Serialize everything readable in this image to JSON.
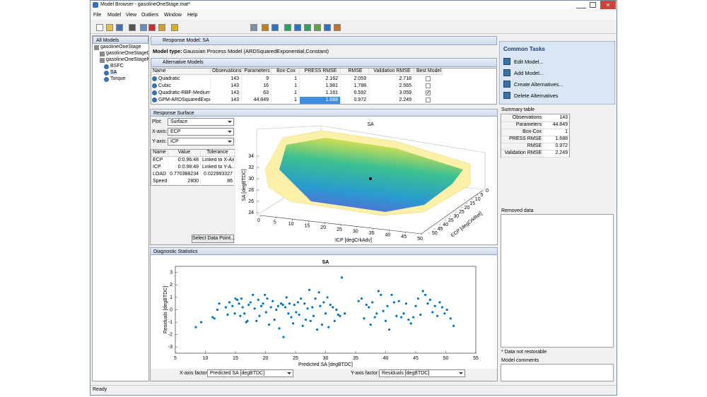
{
  "window": {
    "title": "Model Browser - gasolineOneStage.mat*"
  },
  "menu": [
    "File",
    "Model",
    "View",
    "Outliers",
    "Window",
    "Help"
  ],
  "tree": {
    "header": "All Models",
    "items": [
      "gasolineOneStage",
      "gasolineOneStageD",
      "gasolineOneStageM",
      "BSFC",
      "SA",
      "Torque"
    ]
  },
  "response_model": {
    "header": "Response Model: SA"
  },
  "model_type": {
    "label": "Model type:",
    "value": "Gaussian Process Model (ARDSquaredExponential,Constant)"
  },
  "alternatives": {
    "header": "Alternative Models",
    "columns": [
      "Name",
      "Observations",
      "Parameters",
      "Box-Cox",
      "PRESS RMSE",
      "RMSE",
      "Validation RMSE",
      "Best Model"
    ],
    "rows": [
      [
        "Quadratic",
        143,
        9,
        1,
        2.162,
        2.053,
        2.718
      ],
      [
        "Cubic",
        143,
        16,
        1,
        1.981,
        1.788,
        2.565
      ],
      [
        "Quadratic-RBF-Medium",
        143,
        63,
        1,
        1.161,
        0.592,
        3.059
      ],
      [
        "GPM-ARDSquaredExpo...",
        143,
        44.849,
        1,
        1.688,
        0.972,
        2.249
      ]
    ],
    "best_model": [
      false,
      false,
      true,
      false
    ]
  },
  "response_surface": {
    "header": "Response Surface",
    "plot_label": "Plot:",
    "plot_value": "Surface",
    "x_label": "X-axis:",
    "x_value": "ECP",
    "y_label": "Y-axis:",
    "y_value": "ICP",
    "table": {
      "columns": [
        "Name",
        "Value",
        "Tolerance"
      ],
      "rows": [
        [
          "ECP",
          "0:0.96:48",
          "Linked to X-Axis"
        ],
        [
          "ICP",
          "0:0.98:49",
          "Linked to Y-A..."
        ],
        [
          "LOAD",
          "0.770388234",
          "0.022993327"
        ],
        [
          "Speed",
          2800,
          86
        ]
      ]
    },
    "button": "Select Data Point...",
    "chart": {
      "type": "surface",
      "title": "SA",
      "zlabel": "SA [degBTDC]",
      "zlim": [
        22,
        35
      ],
      "zticks": [
        24,
        26,
        28,
        30,
        32,
        34
      ],
      "xlabel": "ICP [degCrkAdv]",
      "xlim": [
        0,
        50
      ],
      "xticks": [
        0,
        5,
        10,
        15,
        20,
        25,
        30,
        35,
        40,
        45,
        50
      ],
      "ylabel": "ECP [degCrkRet]",
      "ylim": [
        0,
        50
      ],
      "yticks": [
        0,
        5,
        10,
        15,
        20,
        25,
        30,
        35,
        40,
        45,
        50
      ]
    }
  },
  "diagnostics": {
    "header": "Diagnostic Statistics",
    "chart_data": {
      "type": "scatter",
      "title": "SA",
      "xlabel": "Predicted SA [degBTDC]",
      "ylabel": "Residuals [degBTDC]",
      "color": "#0072bd",
      "xlim": [
        5,
        55
      ],
      "xticks": [
        5,
        10,
        15,
        20,
        25,
        30,
        35,
        40,
        45,
        50,
        55
      ],
      "ylim": [
        -3.5,
        3.5
      ],
      "yticks": [
        -3,
        -2,
        -1,
        0,
        1,
        2,
        3
      ],
      "x": [
        8.4,
        9.3,
        11.2,
        11.5,
        12,
        12.3,
        13.4,
        13.7,
        14,
        14.5,
        14.9,
        15,
        15.3,
        15.6,
        15.8,
        16,
        16.2,
        16.5,
        16.8,
        17,
        17.2,
        17.5,
        17.9,
        18.2,
        18.5,
        18.8,
        19,
        19.3,
        19.6,
        19.9,
        20.1,
        20.3,
        20.6,
        20.9,
        21.2,
        21.5,
        21.8,
        22.1,
        22.3,
        22.6,
        22.9,
        23,
        23.3,
        23.5,
        23.8,
        24,
        24.3,
        24.6,
        24.8,
        25.1,
        25.4,
        25.6,
        25.9,
        26.2,
        26.5,
        26.7,
        27,
        27.3,
        27.5,
        27.8,
        28,
        28.3,
        28.6,
        28.9,
        29.1,
        29.4,
        29.7,
        30,
        30.3,
        30.5,
        30.8,
        31.2,
        31.5,
        31.8,
        32.1,
        32.4,
        32.7,
        33.2,
        35.5,
        36,
        36.4,
        36.8,
        37.2,
        37.5,
        37.8,
        38.2,
        38.5,
        38.8,
        39.2,
        39.6,
        40,
        40.3,
        40.6,
        41,
        41.4,
        41.8,
        42.2,
        42.6,
        43,
        43.4,
        43.8,
        44.2,
        44.6,
        45,
        45.4,
        45.8,
        46.2,
        46.6,
        47,
        47.4,
        47.8,
        48.2,
        48.6,
        49,
        49.4,
        49.8,
        50.2,
        50.8,
        51.3
      ],
      "y": [
        -1.4,
        -1,
        -0.6,
        -0.7,
        0,
        0.5,
        0.2,
        -0.4,
        0.6,
        0.3,
        -0.3,
        0.9,
        0.8,
        0.5,
        -0.5,
        0.9,
        0.2,
        -0.3,
        -1,
        -0.9,
        0.4,
        0.6,
        1.2,
        0.1,
        -0.9,
        0.8,
        -0.5,
        0.3,
        0.5,
        1.2,
        -0.2,
        0.9,
        -1.2,
        0.2,
        0.7,
        -0.8,
        0,
        0.3,
        -1.5,
        0.5,
        0.4,
        -2.2,
        0.2,
        1,
        -0.3,
        0.5,
        -0.6,
        -1.1,
        0.4,
        -0.2,
        0.6,
        -0.4,
        0.9,
        -1.3,
        0.5,
        -0.8,
        0.1,
        1.6,
        -0.9,
        0.2,
        -0.5,
        0.9,
        -1.6,
        1.4,
        0.3,
        -1.2,
        0.6,
        -0.3,
        1,
        -1.4,
        0.4,
        0.2,
        -0.9,
        0,
        -0.4,
        -0.5,
        2.6,
        -0.3,
        0.7,
        0.9,
        -0.7,
        0.4,
        0.2,
        -1.2,
        0.6,
        -0.6,
        -0.3,
        1.5,
        1.2,
        -0.1,
        -0.9,
        0.3,
        -1.6,
        1.2,
        0.6,
        -0.5,
        0.7,
        -0.6,
        -0.3,
        0.5,
        -0.8,
        -1.1,
        -0.6,
        0.3,
        0.9,
        -0.4,
        1.5,
        1.2,
        0.5,
        0.8,
        -0.2,
        0.3,
        -0.5,
        0.6,
        0.2,
        -0.3,
        0,
        -0.7,
        -1.3
      ]
    },
    "x_factor_label": "X-axis factor:",
    "x_factor_value": "Predicted SA [degBTDC]",
    "y_factor_label": "Y-axis factor:",
    "y_factor_value": "Residuals [degBTDC]"
  },
  "common_tasks": {
    "header": "Common Tasks",
    "items": [
      "Edit Model...",
      "Add Model...",
      "Create Alternatives...",
      "Delete Alternatives"
    ]
  },
  "summary": {
    "header": "Summary table",
    "rows": [
      [
        "Observations",
        143
      ],
      [
        "Parameters",
        44.849
      ],
      [
        "Box-Cox",
        1
      ],
      [
        "PRESS RMSE",
        1.688
      ],
      [
        "RMSE",
        0.972
      ],
      [
        "Validation RMSE",
        2.249
      ]
    ]
  },
  "removed_data": {
    "header": "Removed data",
    "note": "* Data not restorable"
  },
  "model_comments": {
    "header": "Model comments"
  },
  "status": "Ready"
}
